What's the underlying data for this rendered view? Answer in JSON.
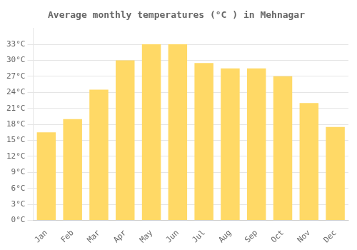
{
  "chart_data": {
    "type": "bar",
    "title": "Average monthly temperatures (°C ) in Mehnagar",
    "categories": [
      "Jan",
      "Feb",
      "Mar",
      "Apr",
      "May",
      "Jun",
      "Jul",
      "Aug",
      "Sep",
      "Oct",
      "Nov",
      "Dec"
    ],
    "values": [
      16.5,
      19.0,
      24.5,
      30.0,
      33.0,
      33.0,
      29.5,
      28.5,
      28.5,
      27.0,
      22.0,
      17.5
    ],
    "color": "#FFD966",
    "ylim": [
      0,
      36
    ],
    "yticks": [
      {
        "value": 0,
        "label": "0°C"
      },
      {
        "value": 3,
        "label": "3°C"
      },
      {
        "value": 6,
        "label": "6°C"
      },
      {
        "value": 9,
        "label": "9°C"
      },
      {
        "value": 12,
        "label": "12°C"
      },
      {
        "value": 15,
        "label": "15°C"
      },
      {
        "value": 18,
        "label": "18°C"
      },
      {
        "value": 21,
        "label": "21°C"
      },
      {
        "value": 24,
        "label": "24°C"
      },
      {
        "value": 27,
        "label": "27°C"
      },
      {
        "value": 30,
        "label": "30°C"
      },
      {
        "value": 33,
        "label": "33°C"
      }
    ],
    "grid": true
  }
}
